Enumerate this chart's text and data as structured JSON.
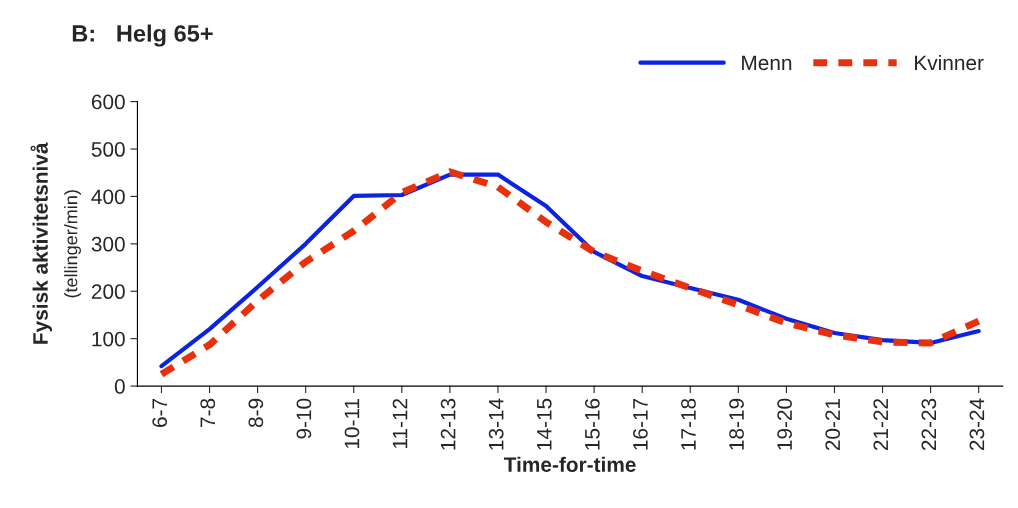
{
  "chart_data": {
    "type": "line",
    "title": "B:   Helg 65+",
    "xlabel": "Time-for-time",
    "ylabel": "Fysisk aktivitetsnivå\n(tellinger/min)",
    "categories": [
      "6-7",
      "7-8",
      "8-9",
      "9-10",
      "10-11",
      "11-12",
      "12-13",
      "13-14",
      "14-15",
      "15-16",
      "16-17",
      "17-18",
      "18-19",
      "19-20",
      "20-21",
      "21-22",
      "22-23",
      "23-24"
    ],
    "series": [
      {
        "name": "Menn",
        "color": "#0b24e0",
        "line_style": "solid",
        "values": [
          42,
          120,
          209,
          300,
          401,
          403,
          446,
          446,
          380,
          283,
          232,
          207,
          182,
          142,
          112,
          97,
          91,
          116
        ]
      },
      {
        "name": "Kvinner",
        "color": "#e8300c",
        "line_style": "dashed",
        "values": [
          25,
          87,
          180,
          262,
          327,
          408,
          452,
          420,
          346,
          283,
          243,
          207,
          171,
          133,
          108,
          93,
          91,
          137
        ]
      }
    ],
    "ylim": [
      0,
      600
    ],
    "yticks": [
      0,
      100,
      200,
      300,
      400,
      500,
      600
    ],
    "grid": false,
    "legend": "top right",
    "marker": "none"
  }
}
